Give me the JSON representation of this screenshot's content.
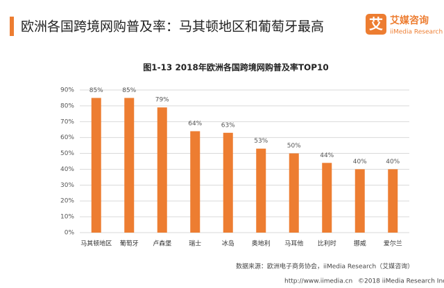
{
  "header": {
    "title": "欧洲各国跨境网购普及率：马其顿地区和葡萄牙最高"
  },
  "logo": {
    "mark": "艾",
    "name": "艾媒咨询",
    "sub": "iiMedia Research"
  },
  "chart_data": {
    "type": "bar",
    "title": "图1-13  2018年欧洲各国跨境网购普及率TOP10",
    "categories": [
      "马其顿地区",
      "葡萄牙",
      "卢森堡",
      "瑞士",
      "冰岛",
      "奥地利",
      "马耳他",
      "比利时",
      "挪威",
      "爱尔兰"
    ],
    "values": [
      85,
      85,
      79,
      64,
      63,
      53,
      50,
      44,
      40,
      40
    ],
    "value_labels": [
      "85%",
      "85%",
      "79%",
      "64%",
      "63%",
      "53%",
      "50%",
      "44%",
      "40%",
      "40%"
    ],
    "color": "#ed7d31",
    "ylim": [
      0,
      90
    ],
    "yticks": [
      {
        "value": 0,
        "label": "0%"
      },
      {
        "value": 10,
        "label": "10%"
      },
      {
        "value": 20,
        "label": "20%"
      },
      {
        "value": 30,
        "label": "30%"
      },
      {
        "value": 40,
        "label": "40%"
      },
      {
        "value": 50,
        "label": "50%"
      },
      {
        "value": 60,
        "label": "60%"
      },
      {
        "value": 70,
        "label": "70%"
      },
      {
        "value": 80,
        "label": "80%"
      },
      {
        "value": 90,
        "label": "90%"
      }
    ],
    "grid": true,
    "source": "数据来源：欧洲电子商务协会，iiMedia Research（艾媒咨询）"
  },
  "footer": {
    "url": "http://www.iimedia.cn",
    "copyright": "©2018  iiMedia Research  Inc"
  }
}
